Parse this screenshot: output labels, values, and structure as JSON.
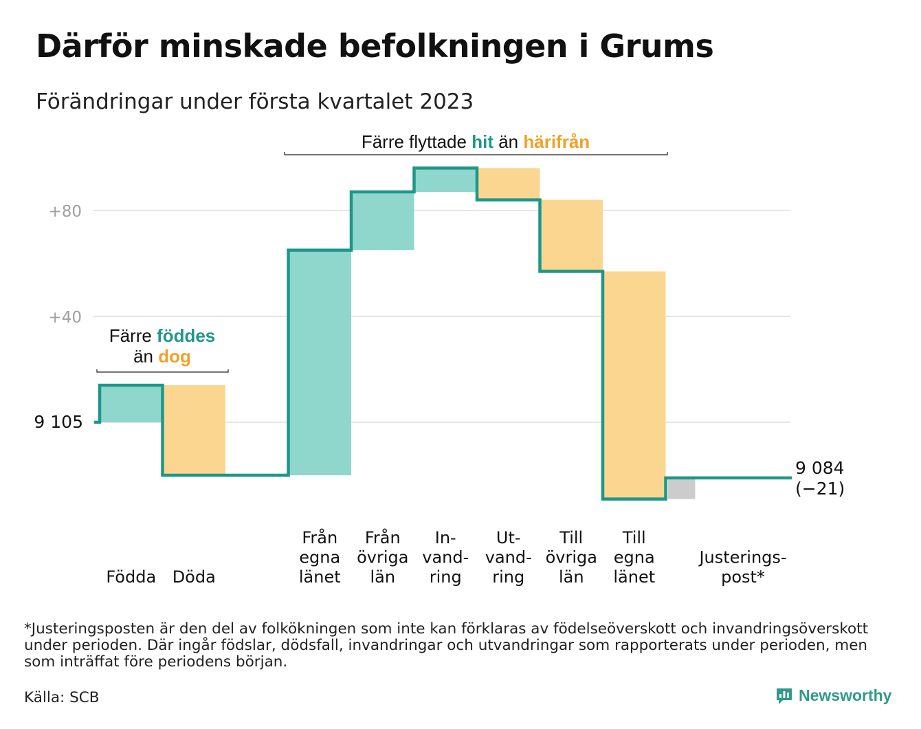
{
  "title": "Därför minskade befolkningen i Grums",
  "subtitle": "Förändringar under första kvartalet 2023",
  "chart_data": {
    "type": "waterfall",
    "start": {
      "label": "9 105",
      "value": 9105
    },
    "end": {
      "label": "9 084",
      "change_label": "(−21)",
      "value": 9084
    },
    "y_axis": {
      "baseline": 9105,
      "ticks": [
        {
          "value": 40,
          "label": "+40"
        },
        {
          "value": 80,
          "label": "+80"
        }
      ]
    },
    "steps": [
      {
        "label_lines": [
          "Födda"
        ],
        "delta": 14,
        "kind": "in"
      },
      {
        "label_lines": [
          "Döda"
        ],
        "delta": -34,
        "kind": "out"
      },
      {
        "label_lines": [],
        "delta": 0,
        "kind": "none"
      },
      {
        "label_lines": [
          "Från",
          "egna",
          "länet"
        ],
        "delta": 85,
        "kind": "in"
      },
      {
        "label_lines": [
          "Från",
          "övriga",
          "län"
        ],
        "delta": 22,
        "kind": "in"
      },
      {
        "label_lines": [
          "In-",
          "vand-",
          "ring"
        ],
        "delta": 9,
        "kind": "in"
      },
      {
        "label_lines": [
          "Ut-",
          "vand-",
          "ring"
        ],
        "delta": -12,
        "kind": "out"
      },
      {
        "label_lines": [
          "Till",
          "övriga",
          "län"
        ],
        "delta": -27,
        "kind": "out"
      },
      {
        "label_lines": [
          "Till",
          "egna",
          "länet"
        ],
        "delta": -86,
        "kind": "out"
      },
      {
        "label_lines": [
          "Justerings-",
          "post*"
        ],
        "delta": 8,
        "kind": "adjust"
      }
    ],
    "annotations": [
      {
        "lines": [
          [
            {
              "text": "Färre ",
              "color": "dark"
            },
            {
              "text": "föddes",
              "color": "teal"
            }
          ],
          [
            {
              "text": "än ",
              "color": "dark"
            },
            {
              "text": "dog",
              "color": "orange"
            }
          ]
        ]
      },
      {
        "lines": [
          [
            {
              "text": "Färre flyttade ",
              "color": "dark"
            },
            {
              "text": "hit",
              "color": "teal"
            },
            {
              "text": " än ",
              "color": "dark"
            },
            {
              "text": "härifrån",
              "color": "orange"
            }
          ]
        ]
      }
    ],
    "colors": {
      "in": "#8fd6cc",
      "out": "#fbd691",
      "adjust": "#cccccc",
      "line": "#1d978a",
      "teal": "#1d978a",
      "orange": "#f0a12a",
      "dark": "#111111",
      "grid": "#dddddd",
      "tick": "#a0a0a0"
    }
  },
  "footnote": "*Justeringsposten är den del av folkökningen som inte kan förklaras av födelseöverskott och invandringsöverskott under perioden. Där ingår födslar, dödsfall, invandringar och utvandringar som rapporterats under perioden, men som inträffat före periodens början.",
  "source": "Källa: SCB",
  "brand": "Newsworthy"
}
